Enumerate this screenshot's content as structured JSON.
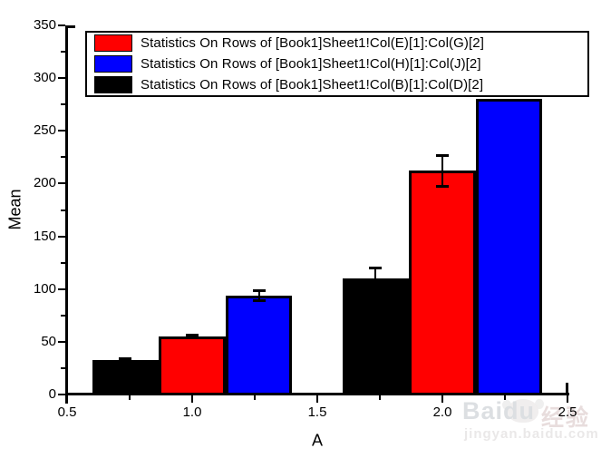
{
  "chart_data": {
    "type": "bar",
    "title": "",
    "xlabel": "A",
    "ylabel": "Mean",
    "xlim": [
      0.5,
      2.5
    ],
    "ylim": [
      0,
      350
    ],
    "x_major_ticks": [
      0.5,
      1.0,
      1.5,
      2.0,
      2.5
    ],
    "x_tick_labels": [
      "0.5",
      "1.0",
      "1.5",
      "2.0",
      "2.5"
    ],
    "x_minor_ticks": [
      0.75,
      1.25,
      1.75,
      2.25
    ],
    "y_major_ticks": [
      0,
      50,
      100,
      150,
      200,
      250,
      300,
      350
    ],
    "y_tick_labels": [
      "0",
      "50",
      "100",
      "150",
      "200",
      "250",
      "300",
      "350"
    ],
    "y_minor_ticks": [
      25,
      75,
      125,
      175,
      225,
      275,
      325
    ],
    "group_centers": [
      1.0,
      2.0
    ],
    "bar_width": 0.2667,
    "grid": false,
    "legend_position": "top",
    "series": [
      {
        "name": "Statistics On Rows of [Book1]Sheet1!Col(B)[1]:Col(D)[2]",
        "color": "#000000",
        "values": [
          33,
          110
        ],
        "errors": [
          1.5,
          10
        ]
      },
      {
        "name": "Statistics On Rows of [Book1]Sheet1!Col(E)[1]:Col(G)[2]",
        "color": "#ff0000",
        "values": [
          55,
          212
        ],
        "errors": [
          1.5,
          15
        ]
      },
      {
        "name": "Statistics On Rows of [Book1]Sheet1!Col(H)[1]:Col(J)[2]",
        "color": "#0000ff",
        "values": [
          94,
          280
        ],
        "errors": [
          5,
          0
        ]
      }
    ]
  },
  "legend": {
    "entries": [
      {
        "color": "#ff0000",
        "label": "Statistics On Rows of [Book1]Sheet1!Col(E)[1]:Col(G)[2]"
      },
      {
        "color": "#0000ff",
        "label": "Statistics On Rows of [Book1]Sheet1!Col(H)[1]:Col(J)[2]"
      },
      {
        "color": "#000000",
        "label": "Statistics On Rows of [Book1]Sheet1!Col(B)[1]:Col(D)[2]"
      }
    ]
  },
  "watermark": {
    "brand": "Baidu",
    "badge": "经验",
    "url": "jingyan.baidu.com"
  }
}
